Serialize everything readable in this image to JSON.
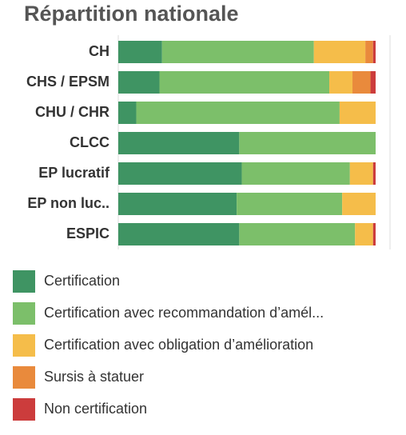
{
  "chart_data": {
    "type": "stacked-bar-horizontal",
    "title": "Répartition nationale",
    "categories": [
      "CH",
      "CHS / EPSM",
      "CHU / CHR",
      "CLCC",
      "EP lucratif",
      "EP non luc..",
      "ESPIC"
    ],
    "xlim": [
      0,
      100
    ],
    "series": [
      {
        "name": "Certification",
        "color": "#3f9463",
        "values": [
          17,
          16,
          7,
          47,
          48,
          46,
          47
        ]
      },
      {
        "name": "Certification avec recommandation d’amél...",
        "color": "#7cbf6a",
        "values": [
          59,
          66,
          79,
          53,
          42,
          41,
          45
        ]
      },
      {
        "name": "Certification avec obligation d’amélioration",
        "color": "#f5bd4a",
        "values": [
          20,
          9,
          14,
          0,
          9,
          13,
          7
        ]
      },
      {
        "name": "Sursis à statuer",
        "color": "#e98a3c",
        "values": [
          3,
          7,
          0,
          0,
          0,
          0,
          0
        ]
      },
      {
        "name": "Non certification",
        "color": "#cc3c3c",
        "values": [
          1,
          2,
          0,
          0,
          1,
          0,
          1
        ]
      }
    ]
  }
}
